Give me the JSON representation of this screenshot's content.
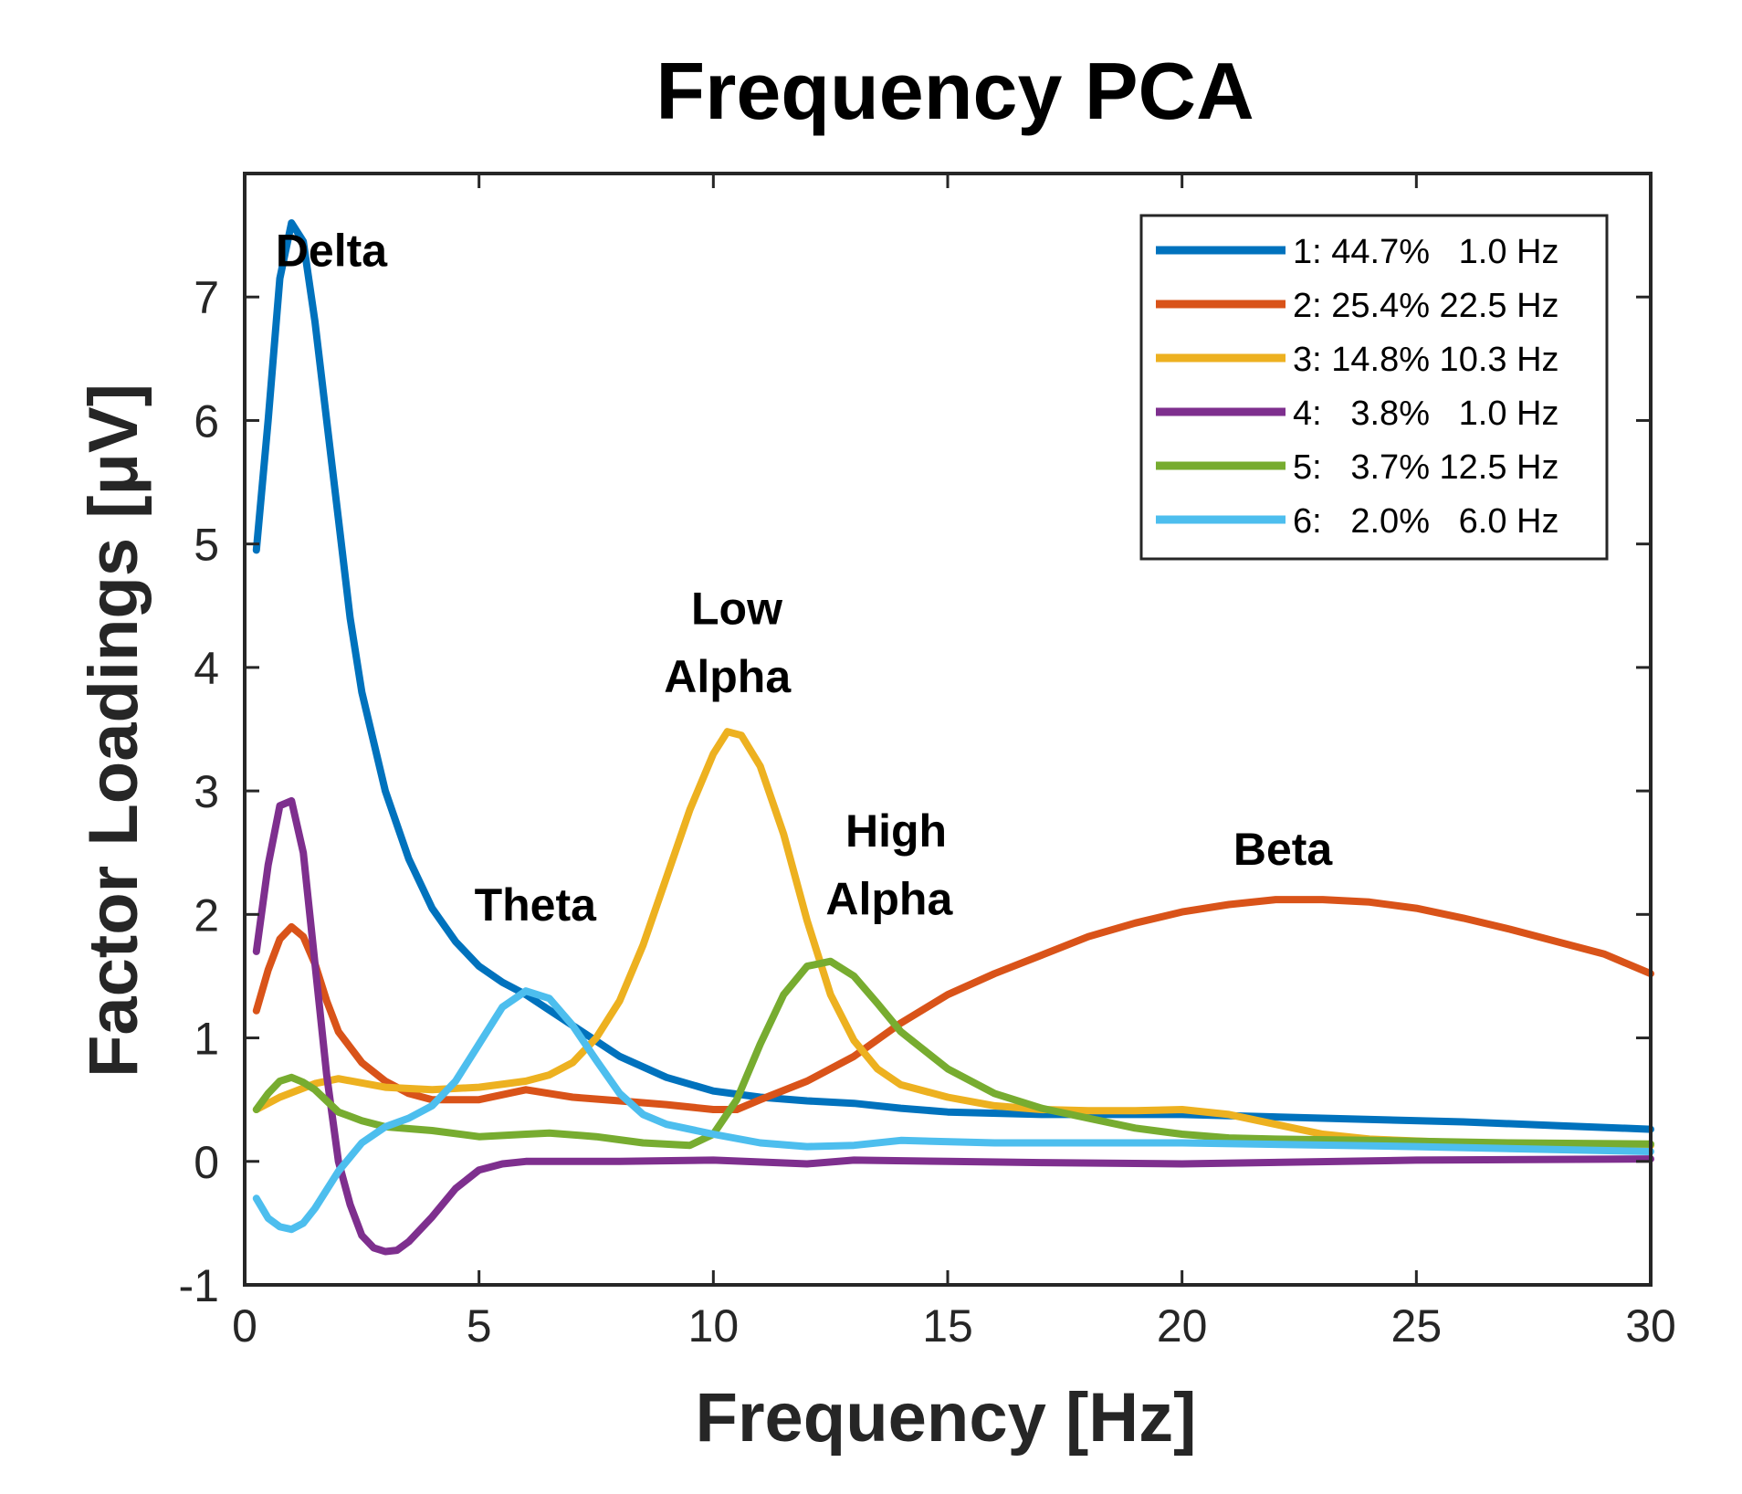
{
  "chart_data": {
    "type": "line",
    "title": "Frequency PCA",
    "xlabel": "Frequency [Hz]",
    "ylabel": "Factor Loadings [μV]",
    "xlim": [
      0,
      30
    ],
    "ylim": [
      -1,
      8
    ],
    "xticks": [
      0,
      5,
      10,
      15,
      20,
      25,
      30
    ],
    "yticks": [
      -1,
      0,
      1,
      2,
      3,
      4,
      5,
      6,
      7
    ],
    "grid": false,
    "legend_position": "top-right",
    "series": [
      {
        "name": "1: 44.7%   1.0 Hz",
        "color": "#0072BD",
        "points": [
          [
            0.25,
            4.95
          ],
          [
            0.5,
            6.0
          ],
          [
            0.75,
            7.15
          ],
          [
            1.0,
            7.6
          ],
          [
            1.25,
            7.45
          ],
          [
            1.5,
            6.8
          ],
          [
            1.75,
            6.0
          ],
          [
            2.0,
            5.2
          ],
          [
            2.25,
            4.4
          ],
          [
            2.5,
            3.8
          ],
          [
            3.0,
            3.0
          ],
          [
            3.5,
            2.45
          ],
          [
            4.0,
            2.05
          ],
          [
            4.5,
            1.78
          ],
          [
            5.0,
            1.58
          ],
          [
            5.5,
            1.45
          ],
          [
            6.0,
            1.35
          ],
          [
            7.0,
            1.1
          ],
          [
            8.0,
            0.85
          ],
          [
            9.0,
            0.68
          ],
          [
            10.0,
            0.57
          ],
          [
            11.0,
            0.52
          ],
          [
            12.0,
            0.49
          ],
          [
            13.0,
            0.47
          ],
          [
            14.0,
            0.43
          ],
          [
            15.0,
            0.4
          ],
          [
            17.0,
            0.38
          ],
          [
            20.0,
            0.38
          ],
          [
            23.0,
            0.35
          ],
          [
            26.0,
            0.32
          ],
          [
            28.0,
            0.29
          ],
          [
            30.0,
            0.26
          ]
        ]
      },
      {
        "name": "2: 25.4% 22.5 Hz",
        "color": "#D95319",
        "points": [
          [
            0.25,
            1.22
          ],
          [
            0.5,
            1.55
          ],
          [
            0.75,
            1.8
          ],
          [
            1.0,
            1.9
          ],
          [
            1.25,
            1.82
          ],
          [
            1.5,
            1.6
          ],
          [
            1.75,
            1.3
          ],
          [
            2.0,
            1.05
          ],
          [
            2.5,
            0.8
          ],
          [
            3.0,
            0.65
          ],
          [
            3.5,
            0.55
          ],
          [
            4.0,
            0.5
          ],
          [
            5.0,
            0.5
          ],
          [
            6.0,
            0.58
          ],
          [
            7.0,
            0.52
          ],
          [
            8.0,
            0.49
          ],
          [
            9.0,
            0.46
          ],
          [
            10.0,
            0.42
          ],
          [
            10.5,
            0.42
          ],
          [
            11.0,
            0.5
          ],
          [
            12.0,
            0.65
          ],
          [
            13.0,
            0.85
          ],
          [
            14.0,
            1.12
          ],
          [
            15.0,
            1.35
          ],
          [
            16.0,
            1.52
          ],
          [
            17.0,
            1.67
          ],
          [
            18.0,
            1.82
          ],
          [
            19.0,
            1.93
          ],
          [
            20.0,
            2.02
          ],
          [
            21.0,
            2.08
          ],
          [
            22.0,
            2.12
          ],
          [
            23.0,
            2.12
          ],
          [
            24.0,
            2.1
          ],
          [
            25.0,
            2.05
          ],
          [
            26.0,
            1.97
          ],
          [
            27.0,
            1.88
          ],
          [
            28.0,
            1.78
          ],
          [
            29.0,
            1.68
          ],
          [
            30.0,
            1.52
          ]
        ]
      },
      {
        "name": "3: 14.8% 10.3 Hz",
        "color": "#EDB120",
        "points": [
          [
            0.25,
            0.42
          ],
          [
            0.75,
            0.52
          ],
          [
            1.5,
            0.63
          ],
          [
            2.0,
            0.67
          ],
          [
            3.0,
            0.6
          ],
          [
            4.0,
            0.58
          ],
          [
            5.0,
            0.6
          ],
          [
            6.0,
            0.65
          ],
          [
            6.5,
            0.7
          ],
          [
            7.0,
            0.8
          ],
          [
            7.5,
            1.0
          ],
          [
            8.0,
            1.3
          ],
          [
            8.5,
            1.75
          ],
          [
            9.0,
            2.3
          ],
          [
            9.5,
            2.85
          ],
          [
            10.0,
            3.3
          ],
          [
            10.3,
            3.48
          ],
          [
            10.6,
            3.45
          ],
          [
            11.0,
            3.2
          ],
          [
            11.5,
            2.65
          ],
          [
            12.0,
            1.95
          ],
          [
            12.5,
            1.35
          ],
          [
            13.0,
            0.98
          ],
          [
            13.5,
            0.75
          ],
          [
            14.0,
            0.62
          ],
          [
            15.0,
            0.52
          ],
          [
            16.0,
            0.45
          ],
          [
            17.0,
            0.42
          ],
          [
            18.0,
            0.41
          ],
          [
            19.0,
            0.41
          ],
          [
            20.0,
            0.42
          ],
          [
            21.0,
            0.38
          ],
          [
            22.0,
            0.3
          ],
          [
            23.0,
            0.22
          ],
          [
            24.0,
            0.18
          ],
          [
            26.0,
            0.15
          ],
          [
            28.0,
            0.14
          ],
          [
            30.0,
            0.13
          ]
        ]
      },
      {
        "name": "4:   3.8%   1.0 Hz",
        "color": "#7E2F8E",
        "points": [
          [
            0.25,
            1.7
          ],
          [
            0.5,
            2.4
          ],
          [
            0.75,
            2.88
          ],
          [
            1.0,
            2.92
          ],
          [
            1.25,
            2.5
          ],
          [
            1.5,
            1.6
          ],
          [
            1.75,
            0.7
          ],
          [
            2.0,
            0.0
          ],
          [
            2.25,
            -0.35
          ],
          [
            2.5,
            -0.6
          ],
          [
            2.75,
            -0.7
          ],
          [
            3.0,
            -0.73
          ],
          [
            3.25,
            -0.72
          ],
          [
            3.5,
            -0.65
          ],
          [
            4.0,
            -0.45
          ],
          [
            4.5,
            -0.22
          ],
          [
            5.0,
            -0.07
          ],
          [
            5.5,
            -0.02
          ],
          [
            6.0,
            0.0
          ],
          [
            8.0,
            0.0
          ],
          [
            10.0,
            0.01
          ],
          [
            12.0,
            -0.02
          ],
          [
            13.0,
            0.01
          ],
          [
            15.0,
            0.0
          ],
          [
            17.0,
            -0.01
          ],
          [
            20.0,
            -0.02
          ],
          [
            25.0,
            0.01
          ],
          [
            30.0,
            0.02
          ]
        ]
      },
      {
        "name": "5:   3.7% 12.5 Hz",
        "color": "#77AC30",
        "points": [
          [
            0.25,
            0.42
          ],
          [
            0.5,
            0.55
          ],
          [
            0.75,
            0.65
          ],
          [
            1.0,
            0.68
          ],
          [
            1.25,
            0.64
          ],
          [
            1.5,
            0.58
          ],
          [
            2.0,
            0.4
          ],
          [
            2.5,
            0.33
          ],
          [
            3.0,
            0.28
          ],
          [
            4.0,
            0.25
          ],
          [
            5.0,
            0.2
          ],
          [
            6.0,
            0.22
          ],
          [
            6.5,
            0.23
          ],
          [
            7.5,
            0.2
          ],
          [
            8.5,
            0.15
          ],
          [
            9.5,
            0.13
          ],
          [
            10.0,
            0.22
          ],
          [
            10.5,
            0.5
          ],
          [
            11.0,
            0.95
          ],
          [
            11.5,
            1.35
          ],
          [
            12.0,
            1.58
          ],
          [
            12.5,
            1.62
          ],
          [
            13.0,
            1.5
          ],
          [
            13.5,
            1.28
          ],
          [
            14.0,
            1.05
          ],
          [
            15.0,
            0.75
          ],
          [
            16.0,
            0.55
          ],
          [
            17.0,
            0.43
          ],
          [
            18.0,
            0.35
          ],
          [
            19.0,
            0.27
          ],
          [
            20.0,
            0.22
          ],
          [
            21.0,
            0.19
          ],
          [
            22.0,
            0.18
          ],
          [
            24.0,
            0.17
          ],
          [
            27.0,
            0.15
          ],
          [
            30.0,
            0.14
          ]
        ]
      },
      {
        "name": "6:   2.0%   6.0 Hz",
        "color": "#4DBEEE",
        "points": [
          [
            0.25,
            -0.3
          ],
          [
            0.5,
            -0.46
          ],
          [
            0.75,
            -0.53
          ],
          [
            1.0,
            -0.55
          ],
          [
            1.25,
            -0.5
          ],
          [
            1.5,
            -0.38
          ],
          [
            2.0,
            -0.08
          ],
          [
            2.5,
            0.15
          ],
          [
            3.0,
            0.28
          ],
          [
            3.5,
            0.35
          ],
          [
            4.0,
            0.45
          ],
          [
            4.5,
            0.65
          ],
          [
            5.0,
            0.95
          ],
          [
            5.5,
            1.25
          ],
          [
            6.0,
            1.38
          ],
          [
            6.5,
            1.32
          ],
          [
            7.0,
            1.1
          ],
          [
            7.5,
            0.82
          ],
          [
            8.0,
            0.55
          ],
          [
            8.5,
            0.38
          ],
          [
            9.0,
            0.3
          ],
          [
            10.0,
            0.22
          ],
          [
            11.0,
            0.15
          ],
          [
            12.0,
            0.12
          ],
          [
            13.0,
            0.13
          ],
          [
            14.0,
            0.17
          ],
          [
            16.0,
            0.15
          ],
          [
            20.0,
            0.15
          ],
          [
            25.0,
            0.12
          ],
          [
            30.0,
            0.08
          ]
        ]
      }
    ],
    "annotations": [
      {
        "text": "Delta",
        "x": 1.85,
        "y": 7.25
      },
      {
        "text": "Theta",
        "x": 6.2,
        "y": 1.95
      },
      {
        "text": "Low",
        "x": 10.5,
        "y": 4.35
      },
      {
        "text": "Alpha",
        "x": 10.3,
        "y": 3.8
      },
      {
        "text": "High",
        "x": 13.9,
        "y": 2.55
      },
      {
        "text": "Alpha",
        "x": 13.75,
        "y": 2.0
      },
      {
        "text": "Beta",
        "x": 22.15,
        "y": 2.4
      }
    ]
  }
}
